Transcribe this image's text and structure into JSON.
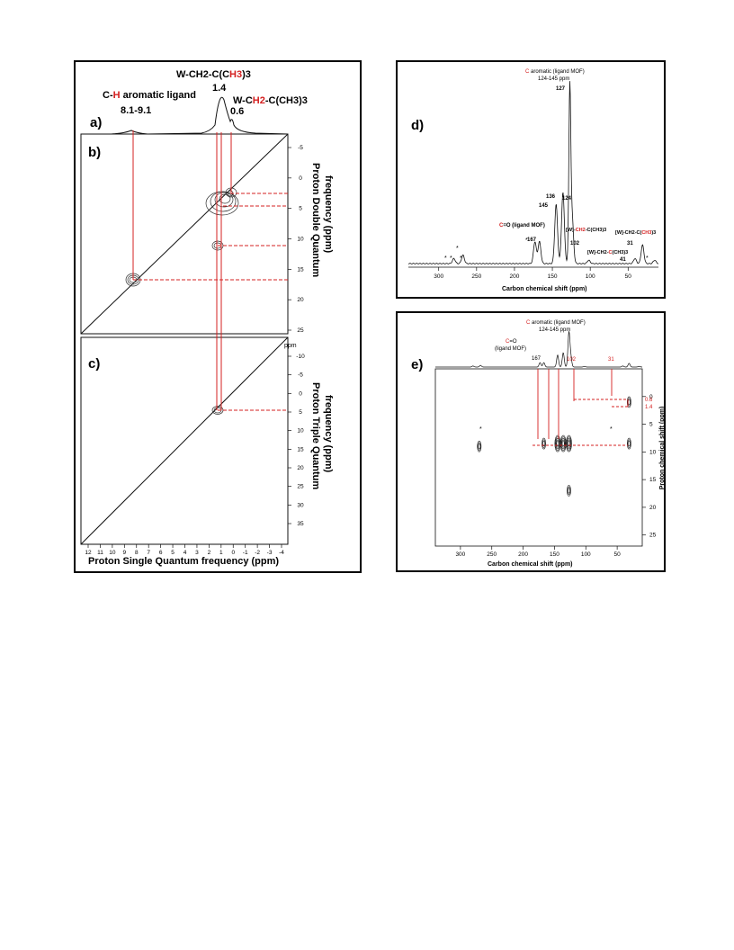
{
  "colors": {
    "accent_red": "#d42020",
    "line": "#111111"
  },
  "left_figure": {
    "labels": {
      "a": "a)",
      "b": "b)",
      "c": "c)"
    },
    "peaks_1d": {
      "aromatic": {
        "label_pre": "C-",
        "label_red": "H",
        "label_post": " aromatic ligand",
        "value": "8.1-9.1"
      },
      "methyl": {
        "label_pre": "W-CH2-C(C",
        "label_red": "H3",
        "label_post": ")3",
        "value": "1.4"
      },
      "methylene": {
        "label_pre": "W-C",
        "label_red": "H2",
        "label_post": "-C(CH3)3",
        "value": "0.6"
      }
    },
    "axes": {
      "x_title": "Proton Single Quantum frequency (ppm)",
      "x_ticks": [
        "12",
        "11",
        "10",
        "9",
        "8",
        "7",
        "6",
        "5",
        "4",
        "3",
        "2",
        "1",
        "0",
        "-1",
        "-2",
        "-3",
        "-4"
      ],
      "dq_title_1": "Proton Double Quantum",
      "dq_title_2": "frequency  (ppm)",
      "dq_ticks": [
        "-5",
        "0",
        "5",
        "10",
        "15",
        "20",
        "25"
      ],
      "ppm_label": "ppm",
      "tq_title_1": "Proton Triple Quantum",
      "tq_title_2": "frequency  (ppm)",
      "tq_ticks": [
        "-10",
        "-5",
        "0",
        "5",
        "10",
        "15",
        "20",
        "25",
        "30",
        "35"
      ]
    }
  },
  "panel_d": {
    "label": "d)",
    "title_red": "C",
    "title_rest": " aromatic (ligand MOF)",
    "title_range": "124-145 ppm",
    "x_title": "Carbon chemical shift (ppm)",
    "x_ticks": [
      "300",
      "250",
      "200",
      "150",
      "100",
      "50"
    ],
    "peak_labels": {
      "p127": "127",
      "p136": "136",
      "p145": "145",
      "p124": "124",
      "p167": "167",
      "p102": "102",
      "p31": "31",
      "p41": "41",
      "co_red": "C",
      "co_rest": "=O (ligand MOF)",
      "wch2_pre": "[W]-",
      "wch2_red": "CH2",
      "wch2_post": "-C(CH3)3",
      "wq_pre": "[W]-CH2-",
      "wq_red": "C",
      "wq_post": "(CH3)3",
      "wme_pre": "[W]-CH2-C(",
      "wme_red": "CH3",
      "wme_post": ")3",
      "ssb": "*"
    }
  },
  "panel_e": {
    "label": "e)",
    "title_red": "C",
    "title_rest": " aromatic (ligand MOF)",
    "title_range": "124-145 ppm",
    "co_red": "C",
    "co_rest": "=O",
    "co_line2": "(ligand MOF)",
    "p167": "167",
    "p102": "102",
    "p31": "31",
    "h06": "0.6",
    "h14": "1.4",
    "ssb": "*",
    "x_title": "Carbon chemical shift (ppm)",
    "x_ticks": [
      "300",
      "250",
      "200",
      "150",
      "100",
      "50"
    ],
    "y_title": "Proton chemical shift (ppm)",
    "y_ticks": [
      "0",
      "5",
      "10",
      "15",
      "20",
      "25"
    ]
  },
  "chart_data": [
    {
      "type": "scatter",
      "panel": "a-b",
      "description_kind": "1D 1H spectrum with 2D DQ/SQ correlation",
      "x": "Proton Single Quantum frequency (ppm)",
      "peaks_1d_ppm": [
        8.6,
        1.4,
        0.6
      ],
      "correlations_sq_dq_ppm": [
        [
          8.6,
          17.2
        ],
        [
          1.4,
          2.8
        ],
        [
          0.6,
          1.2
        ],
        [
          1.4,
          10.0
        ],
        [
          0.6,
          0.0
        ]
      ]
    },
    {
      "type": "scatter",
      "panel": "c",
      "description_kind": "TQ/SQ correlation",
      "correlations_sq_tq_ppm": [
        [
          1.4,
          4.2
        ]
      ]
    },
    {
      "type": "line",
      "panel": "d",
      "x_label": "Carbon chemical shift (ppm)",
      "xlim": [
        340,
        10
      ],
      "peaks_ppm": [
        {
          "x": 127,
          "height": 1.0
        },
        {
          "x": 136,
          "height": 0.42
        },
        {
          "x": 145,
          "height": 0.35
        },
        {
          "x": 124,
          "height": 0.28
        },
        {
          "x": 167,
          "height": 0.13
        },
        {
          "x": 173,
          "height": 0.13
        },
        {
          "x": 102,
          "height": 0.02
        },
        {
          "x": 31,
          "height": 0.11
        },
        {
          "x": 41,
          "height": 0.03
        },
        {
          "x": 268,
          "height": 0.05
        },
        {
          "x": 280,
          "height": 0.03
        },
        {
          "x": 15,
          "height": 0.02
        }
      ]
    },
    {
      "type": "heatmap",
      "panel": "e",
      "x_label": "Carbon chemical shift (ppm)",
      "y_label": "Proton chemical shift (ppm)",
      "xlim": [
        340,
        10
      ],
      "ylim": [
        -5,
        27
      ],
      "cross_peaks_c_h_ppm": [
        [
          270,
          9
        ],
        [
          167,
          8.5
        ],
        [
          145,
          8.5
        ],
        [
          136,
          8.5
        ],
        [
          127,
          8.5
        ],
        [
          127,
          17
        ],
        [
          31,
          1.0
        ],
        [
          31,
          8.5
        ]
      ]
    }
  ]
}
